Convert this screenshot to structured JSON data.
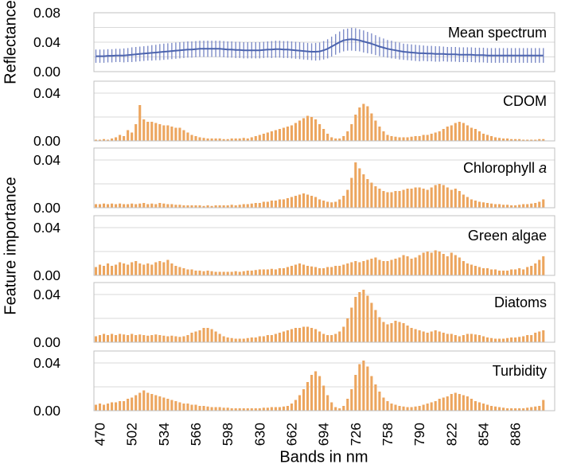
{
  "figure": {
    "colors": {
      "bar": "#ECA55E",
      "line": "#4C64AE",
      "errorbar": "#7E8CC8",
      "border": "#C0C0C0",
      "gridline": "#D9D9D9",
      "text": "#000000",
      "background": "#FFFFFF"
    }
  },
  "chart_data": {
    "type": "multi-panel",
    "title": "",
    "xlabel": "Bands in nm",
    "ylabel_top": "Reflectance",
    "ylabel_bottom": "Feature importance",
    "x_start": 466,
    "x_step": 4,
    "x_count": 113,
    "x_ticks": [
      470,
      502,
      534,
      566,
      598,
      630,
      662,
      694,
      726,
      758,
      790,
      822,
      854,
      886
    ],
    "panels": [
      {
        "id": "mean-spectrum",
        "label": "Mean spectrum",
        "label_italic": "",
        "type": "line-errorbar",
        "ylim": [
          0,
          0.08
        ],
        "gridlines": [
          0.02,
          0.04,
          0.06
        ],
        "yticks": [
          {
            "value": 0.0,
            "label": "0.00"
          },
          {
            "value": 0.04,
            "label": "0.04"
          },
          {
            "value": 0.08,
            "label": "0.08"
          }
        ],
        "values": [
          0.021,
          0.021,
          0.021,
          0.0215,
          0.0215,
          0.022,
          0.022,
          0.022,
          0.0225,
          0.023,
          0.0235,
          0.024,
          0.0245,
          0.025,
          0.0255,
          0.026,
          0.0265,
          0.027,
          0.0275,
          0.028,
          0.0285,
          0.029,
          0.0295,
          0.03,
          0.03,
          0.0305,
          0.031,
          0.031,
          0.031,
          0.031,
          0.031,
          0.031,
          0.0305,
          0.03,
          0.03,
          0.0295,
          0.0295,
          0.029,
          0.029,
          0.029,
          0.029,
          0.029,
          0.0295,
          0.03,
          0.03,
          0.0305,
          0.0305,
          0.03,
          0.03,
          0.0295,
          0.029,
          0.0285,
          0.028,
          0.0275,
          0.027,
          0.027,
          0.0275,
          0.029,
          0.031,
          0.034,
          0.037,
          0.04,
          0.0425,
          0.0435,
          0.044,
          0.0435,
          0.0425,
          0.041,
          0.0395,
          0.038,
          0.036,
          0.034,
          0.0325,
          0.031,
          0.03,
          0.029,
          0.028,
          0.027,
          0.0265,
          0.026,
          0.0255,
          0.025,
          0.025,
          0.0245,
          0.0245,
          0.024,
          0.024,
          0.024,
          0.0235,
          0.0235,
          0.0235,
          0.023,
          0.023,
          0.023,
          0.023,
          0.0225,
          0.0225,
          0.0225,
          0.022,
          0.022,
          0.022,
          0.022,
          0.022,
          0.022,
          0.022,
          0.022,
          0.022,
          0.022,
          0.022,
          0.022,
          0.022,
          0.022,
          0.022
        ],
        "errors": [
          0.009,
          0.009,
          0.009,
          0.009,
          0.009,
          0.009,
          0.009,
          0.0095,
          0.0095,
          0.01,
          0.01,
          0.01,
          0.01,
          0.01,
          0.0105,
          0.0105,
          0.011,
          0.011,
          0.011,
          0.011,
          0.011,
          0.011,
          0.011,
          0.011,
          0.011,
          0.011,
          0.011,
          0.011,
          0.011,
          0.011,
          0.011,
          0.011,
          0.011,
          0.011,
          0.011,
          0.011,
          0.011,
          0.011,
          0.011,
          0.011,
          0.011,
          0.011,
          0.011,
          0.011,
          0.0115,
          0.0115,
          0.0115,
          0.0115,
          0.0115,
          0.0115,
          0.0115,
          0.0115,
          0.0115,
          0.0115,
          0.0115,
          0.012,
          0.012,
          0.0125,
          0.013,
          0.0135,
          0.014,
          0.0145,
          0.015,
          0.015,
          0.0155,
          0.0155,
          0.015,
          0.015,
          0.0145,
          0.014,
          0.0135,
          0.013,
          0.0125,
          0.012,
          0.012,
          0.0115,
          0.0115,
          0.011,
          0.011,
          0.011,
          0.011,
          0.011,
          0.0105,
          0.0105,
          0.0105,
          0.0105,
          0.0105,
          0.01,
          0.01,
          0.01,
          0.01,
          0.01,
          0.01,
          0.01,
          0.01,
          0.01,
          0.01,
          0.01,
          0.01,
          0.01,
          0.01,
          0.01,
          0.01,
          0.01,
          0.01,
          0.01,
          0.01,
          0.01,
          0.01,
          0.01,
          0.01,
          0.01,
          0.01
        ]
      },
      {
        "id": "cdom",
        "label": "CDOM",
        "label_italic": "",
        "type": "bar",
        "ylim": [
          0,
          0.05
        ],
        "gridlines": [
          0.02,
          0.04
        ],
        "yticks": [
          {
            "value": 0.0,
            "label": "0.00"
          },
          {
            "value": 0.04,
            "label": "0.04"
          }
        ],
        "values": [
          0.001,
          0.001,
          0.0015,
          0.001,
          0.002,
          0.003,
          0.005,
          0.004,
          0.009,
          0.007,
          0.014,
          0.03,
          0.018,
          0.016,
          0.016,
          0.015,
          0.014,
          0.013,
          0.013,
          0.012,
          0.011,
          0.011,
          0.009,
          0.007,
          0.005,
          0.004,
          0.003,
          0.0025,
          0.002,
          0.002,
          0.002,
          0.002,
          0.0015,
          0.0015,
          0.002,
          0.002,
          0.002,
          0.0025,
          0.002,
          0.003,
          0.004,
          0.005,
          0.006,
          0.007,
          0.008,
          0.009,
          0.01,
          0.011,
          0.012,
          0.013,
          0.015,
          0.017,
          0.019,
          0.021,
          0.02,
          0.018,
          0.014,
          0.01,
          0.006,
          0.003,
          0.002,
          0.002,
          0.004,
          0.008,
          0.014,
          0.022,
          0.028,
          0.031,
          0.029,
          0.023,
          0.017,
          0.012,
          0.008,
          0.005,
          0.004,
          0.0035,
          0.003,
          0.003,
          0.003,
          0.0035,
          0.004,
          0.004,
          0.005,
          0.005,
          0.006,
          0.007,
          0.008,
          0.01,
          0.012,
          0.013,
          0.015,
          0.016,
          0.015,
          0.013,
          0.011,
          0.01,
          0.008,
          0.006,
          0.005,
          0.004,
          0.003,
          0.0025,
          0.002,
          0.002,
          0.0015,
          0.0015,
          0.0015,
          0.001,
          0.001,
          0.001,
          0.001,
          0.0015,
          0.0015
        ]
      },
      {
        "id": "chlorophyll-a",
        "label": "Chlorophyll",
        "label_italic": "a",
        "type": "bar",
        "ylim": [
          0,
          0.05
        ],
        "gridlines": [
          0.02,
          0.04
        ],
        "yticks": [
          {
            "value": 0.0,
            "label": "0.00"
          },
          {
            "value": 0.04,
            "label": "0.04"
          }
        ],
        "values": [
          0.003,
          0.003,
          0.0035,
          0.003,
          0.0035,
          0.003,
          0.0035,
          0.003,
          0.003,
          0.0035,
          0.003,
          0.0035,
          0.004,
          0.003,
          0.0035,
          0.003,
          0.004,
          0.0035,
          0.003,
          0.003,
          0.0025,
          0.0025,
          0.002,
          0.002,
          0.002,
          0.002,
          0.002,
          0.0015,
          0.002,
          0.0015,
          0.002,
          0.002,
          0.002,
          0.002,
          0.0025,
          0.002,
          0.0025,
          0.003,
          0.003,
          0.0035,
          0.004,
          0.004,
          0.005,
          0.005,
          0.006,
          0.006,
          0.007,
          0.007,
          0.008,
          0.009,
          0.01,
          0.011,
          0.012,
          0.011,
          0.01,
          0.009,
          0.007,
          0.006,
          0.005,
          0.0045,
          0.005,
          0.007,
          0.01,
          0.015,
          0.025,
          0.038,
          0.033,
          0.028,
          0.024,
          0.021,
          0.018,
          0.016,
          0.014,
          0.013,
          0.013,
          0.014,
          0.014,
          0.015,
          0.016,
          0.016,
          0.017,
          0.017,
          0.016,
          0.015,
          0.017,
          0.019,
          0.02,
          0.019,
          0.017,
          0.015,
          0.016,
          0.014,
          0.011,
          0.009,
          0.007,
          0.006,
          0.005,
          0.0045,
          0.004,
          0.0035,
          0.003,
          0.003,
          0.0025,
          0.0025,
          0.002,
          0.002,
          0.0025,
          0.003,
          0.003,
          0.0035,
          0.004,
          0.005,
          0.007
        ]
      },
      {
        "id": "green-algae",
        "label": "Green algae",
        "label_italic": "",
        "type": "bar",
        "ylim": [
          0,
          0.05
        ],
        "gridlines": [
          0.02,
          0.04
        ],
        "yticks": [
          {
            "value": 0.0,
            "label": "0.00"
          },
          {
            "value": 0.04,
            "label": "0.04"
          }
        ],
        "values": [
          0.007,
          0.009,
          0.008,
          0.01,
          0.008,
          0.009,
          0.011,
          0.01,
          0.009,
          0.011,
          0.012,
          0.01,
          0.009,
          0.01,
          0.009,
          0.011,
          0.012,
          0.011,
          0.013,
          0.01,
          0.008,
          0.007,
          0.006,
          0.005,
          0.005,
          0.004,
          0.004,
          0.0035,
          0.004,
          0.0035,
          0.003,
          0.003,
          0.003,
          0.003,
          0.003,
          0.0035,
          0.003,
          0.0035,
          0.004,
          0.004,
          0.0045,
          0.005,
          0.005,
          0.005,
          0.0055,
          0.005,
          0.006,
          0.006,
          0.007,
          0.008,
          0.009,
          0.01,
          0.009,
          0.008,
          0.0075,
          0.007,
          0.006,
          0.006,
          0.007,
          0.007,
          0.008,
          0.008,
          0.009,
          0.01,
          0.011,
          0.012,
          0.011,
          0.012,
          0.013,
          0.014,
          0.015,
          0.013,
          0.012,
          0.012,
          0.013,
          0.014,
          0.015,
          0.017,
          0.016,
          0.014,
          0.015,
          0.017,
          0.019,
          0.02,
          0.019,
          0.021,
          0.02,
          0.018,
          0.016,
          0.019,
          0.017,
          0.015,
          0.012,
          0.01,
          0.009,
          0.008,
          0.007,
          0.006,
          0.006,
          0.005,
          0.005,
          0.004,
          0.004,
          0.004,
          0.005,
          0.005,
          0.006,
          0.005,
          0.007,
          0.008,
          0.01,
          0.013,
          0.016
        ]
      },
      {
        "id": "diatoms",
        "label": "Diatoms",
        "label_italic": "",
        "type": "bar",
        "ylim": [
          0,
          0.05
        ],
        "gridlines": [
          0.02,
          0.04
        ],
        "yticks": [
          {
            "value": 0.0,
            "label": "0.00"
          },
          {
            "value": 0.04,
            "label": "0.04"
          }
        ],
        "values": [
          0.005,
          0.006,
          0.007,
          0.006,
          0.007,
          0.006,
          0.007,
          0.0065,
          0.006,
          0.007,
          0.006,
          0.0065,
          0.006,
          0.0055,
          0.006,
          0.0065,
          0.006,
          0.0055,
          0.005,
          0.0055,
          0.005,
          0.0045,
          0.005,
          0.006,
          0.008,
          0.009,
          0.01,
          0.012,
          0.012,
          0.011,
          0.009,
          0.007,
          0.005,
          0.004,
          0.0035,
          0.003,
          0.003,
          0.003,
          0.0035,
          0.004,
          0.004,
          0.005,
          0.005,
          0.006,
          0.006,
          0.007,
          0.008,
          0.009,
          0.01,
          0.011,
          0.012,
          0.012,
          0.013,
          0.013,
          0.012,
          0.011,
          0.009,
          0.007,
          0.006,
          0.006,
          0.007,
          0.009,
          0.013,
          0.02,
          0.029,
          0.038,
          0.042,
          0.044,
          0.039,
          0.033,
          0.027,
          0.021,
          0.017,
          0.015,
          0.016,
          0.018,
          0.017,
          0.016,
          0.014,
          0.012,
          0.011,
          0.01,
          0.009,
          0.008,
          0.009,
          0.01,
          0.009,
          0.008,
          0.007,
          0.007,
          0.006,
          0.005,
          0.006,
          0.007,
          0.007,
          0.0065,
          0.006,
          0.005,
          0.004,
          0.0035,
          0.003,
          0.003,
          0.003,
          0.0035,
          0.004,
          0.004,
          0.0045,
          0.005,
          0.006,
          0.006,
          0.008,
          0.009,
          0.01
        ]
      },
      {
        "id": "turbidity",
        "label": "Turbidity",
        "label_italic": "",
        "type": "bar",
        "ylim": [
          0,
          0.05
        ],
        "gridlines": [
          0.02,
          0.04
        ],
        "yticks": [
          {
            "value": 0.0,
            "label": "0.00"
          },
          {
            "value": 0.04,
            "label": "0.04"
          }
        ],
        "values": [
          0.005,
          0.006,
          0.005,
          0.006,
          0.007,
          0.007,
          0.008,
          0.008,
          0.01,
          0.011,
          0.013,
          0.015,
          0.017,
          0.015,
          0.014,
          0.013,
          0.012,
          0.011,
          0.01,
          0.009,
          0.008,
          0.007,
          0.006,
          0.006,
          0.005,
          0.005,
          0.004,
          0.004,
          0.0035,
          0.003,
          0.003,
          0.003,
          0.0025,
          0.0025,
          0.002,
          0.002,
          0.002,
          0.002,
          0.002,
          0.002,
          0.002,
          0.002,
          0.0025,
          0.0025,
          0.003,
          0.003,
          0.003,
          0.0035,
          0.004,
          0.006,
          0.009,
          0.013,
          0.018,
          0.024,
          0.03,
          0.033,
          0.029,
          0.021,
          0.013,
          0.007,
          0.003,
          0.002,
          0.004,
          0.01,
          0.018,
          0.03,
          0.039,
          0.042,
          0.037,
          0.029,
          0.022,
          0.016,
          0.011,
          0.008,
          0.006,
          0.005,
          0.004,
          0.0035,
          0.003,
          0.003,
          0.0035,
          0.004,
          0.005,
          0.006,
          0.007,
          0.008,
          0.01,
          0.011,
          0.012,
          0.014,
          0.015,
          0.014,
          0.013,
          0.012,
          0.01,
          0.008,
          0.007,
          0.006,
          0.005,
          0.004,
          0.0035,
          0.003,
          0.0025,
          0.002,
          0.002,
          0.002,
          0.002,
          0.002,
          0.0025,
          0.003,
          0.0035,
          0.004,
          0.009
        ]
      }
    ]
  }
}
